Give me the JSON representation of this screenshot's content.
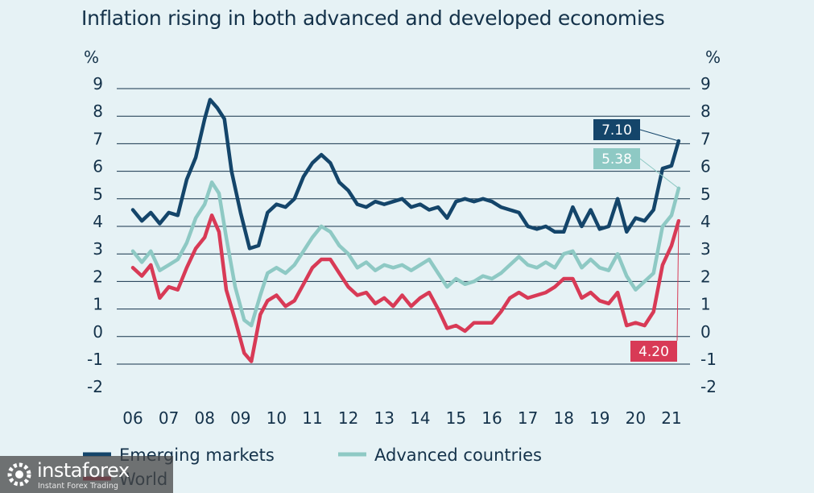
{
  "title": "Inflation rising in both advanced and developed economies",
  "watermark": {
    "name": "instaforex",
    "tagline": "Instant Forex Trading"
  },
  "chart_data": {
    "type": "line",
    "title": "Inflation rising in both advanced and developed economies",
    "y_unit_left": "%",
    "y_unit_right": "%",
    "ylim": [
      -2,
      9
    ],
    "y_ticks": [
      9,
      8,
      7,
      6,
      5,
      4,
      3,
      2,
      1,
      0,
      -1,
      -2
    ],
    "y_tick_labels": [
      "9",
      "8",
      "7",
      "6",
      "5",
      "4",
      "3",
      "2",
      "1",
      "0",
      "-1",
      "-2"
    ],
    "x_tick_labels": [
      "06",
      "07",
      "08",
      "09",
      "10",
      "11",
      "12",
      "13",
      "14",
      "15",
      "16",
      "17",
      "18",
      "19",
      "20",
      "21"
    ],
    "grid": "horizontal",
    "legend_position": "bottom",
    "series": [
      {
        "name": "Emerging markets",
        "color": "#14456a",
        "end_label": "7.10",
        "points": [
          [
            2006.0,
            4.6
          ],
          [
            2006.25,
            4.2
          ],
          [
            2006.5,
            4.5
          ],
          [
            2006.75,
            4.1
          ],
          [
            2007.0,
            4.5
          ],
          [
            2007.25,
            4.4
          ],
          [
            2007.5,
            5.7
          ],
          [
            2007.75,
            6.5
          ],
          [
            2008.0,
            7.9
          ],
          [
            2008.15,
            8.6
          ],
          [
            2008.35,
            8.3
          ],
          [
            2008.55,
            7.9
          ],
          [
            2008.75,
            6.0
          ],
          [
            2009.0,
            4.5
          ],
          [
            2009.25,
            3.2
          ],
          [
            2009.5,
            3.3
          ],
          [
            2009.75,
            4.5
          ],
          [
            2010.0,
            4.8
          ],
          [
            2010.25,
            4.7
          ],
          [
            2010.5,
            5.0
          ],
          [
            2010.75,
            5.8
          ],
          [
            2011.0,
            6.3
          ],
          [
            2011.25,
            6.6
          ],
          [
            2011.5,
            6.3
          ],
          [
            2011.75,
            5.6
          ],
          [
            2012.0,
            5.3
          ],
          [
            2012.25,
            4.8
          ],
          [
            2012.5,
            4.7
          ],
          [
            2012.75,
            4.9
          ],
          [
            2013.0,
            4.8
          ],
          [
            2013.25,
            4.9
          ],
          [
            2013.5,
            5.0
          ],
          [
            2013.75,
            4.7
          ],
          [
            2014.0,
            4.8
          ],
          [
            2014.25,
            4.6
          ],
          [
            2014.5,
            4.7
          ],
          [
            2014.75,
            4.3
          ],
          [
            2015.0,
            4.9
          ],
          [
            2015.25,
            5.0
          ],
          [
            2015.5,
            4.9
          ],
          [
            2015.75,
            5.0
          ],
          [
            2016.0,
            4.9
          ],
          [
            2016.25,
            4.7
          ],
          [
            2016.5,
            4.6
          ],
          [
            2016.75,
            4.5
          ],
          [
            2017.0,
            4.0
          ],
          [
            2017.25,
            3.9
          ],
          [
            2017.5,
            4.0
          ],
          [
            2017.75,
            3.8
          ],
          [
            2018.0,
            3.8
          ],
          [
            2018.25,
            4.7
          ],
          [
            2018.5,
            4.0
          ],
          [
            2018.75,
            4.6
          ],
          [
            2019.0,
            3.9
          ],
          [
            2019.25,
            4.0
          ],
          [
            2019.5,
            5.0
          ],
          [
            2019.75,
            3.8
          ],
          [
            2020.0,
            4.3
          ],
          [
            2020.25,
            4.2
          ],
          [
            2020.5,
            4.6
          ],
          [
            2020.75,
            6.1
          ],
          [
            2021.0,
            6.2
          ],
          [
            2021.2,
            7.1
          ]
        ]
      },
      {
        "name": "Advanced countries",
        "color": "#8ec9c4",
        "end_label": "5.38",
        "points": [
          [
            2006.0,
            3.1
          ],
          [
            2006.25,
            2.7
          ],
          [
            2006.5,
            3.1
          ],
          [
            2006.75,
            2.4
          ],
          [
            2007.0,
            2.6
          ],
          [
            2007.25,
            2.8
          ],
          [
            2007.5,
            3.4
          ],
          [
            2007.75,
            4.3
          ],
          [
            2008.0,
            4.8
          ],
          [
            2008.2,
            5.6
          ],
          [
            2008.4,
            5.2
          ],
          [
            2008.6,
            3.6
          ],
          [
            2008.85,
            1.8
          ],
          [
            2009.1,
            0.6
          ],
          [
            2009.3,
            0.4
          ],
          [
            2009.55,
            1.5
          ],
          [
            2009.75,
            2.3
          ],
          [
            2010.0,
            2.5
          ],
          [
            2010.25,
            2.3
          ],
          [
            2010.5,
            2.6
          ],
          [
            2010.75,
            3.1
          ],
          [
            2011.0,
            3.6
          ],
          [
            2011.25,
            4.0
          ],
          [
            2011.5,
            3.8
          ],
          [
            2011.75,
            3.3
          ],
          [
            2012.0,
            3.0
          ],
          [
            2012.25,
            2.5
          ],
          [
            2012.5,
            2.7
          ],
          [
            2012.75,
            2.4
          ],
          [
            2013.0,
            2.6
          ],
          [
            2013.25,
            2.5
          ],
          [
            2013.5,
            2.6
          ],
          [
            2013.75,
            2.4
          ],
          [
            2014.0,
            2.6
          ],
          [
            2014.25,
            2.8
          ],
          [
            2014.5,
            2.3
          ],
          [
            2014.75,
            1.8
          ],
          [
            2015.0,
            2.1
          ],
          [
            2015.25,
            1.9
          ],
          [
            2015.5,
            2.0
          ],
          [
            2015.75,
            2.2
          ],
          [
            2016.0,
            2.1
          ],
          [
            2016.25,
            2.3
          ],
          [
            2016.5,
            2.6
          ],
          [
            2016.75,
            2.9
          ],
          [
            2017.0,
            2.6
          ],
          [
            2017.25,
            2.5
          ],
          [
            2017.5,
            2.7
          ],
          [
            2017.75,
            2.5
          ],
          [
            2018.0,
            3.0
          ],
          [
            2018.25,
            3.1
          ],
          [
            2018.5,
            2.5
          ],
          [
            2018.75,
            2.8
          ],
          [
            2019.0,
            2.5
          ],
          [
            2019.25,
            2.4
          ],
          [
            2019.5,
            3.0
          ],
          [
            2019.75,
            2.2
          ],
          [
            2020.0,
            1.7
          ],
          [
            2020.25,
            2.0
          ],
          [
            2020.5,
            2.3
          ],
          [
            2020.75,
            4.0
          ],
          [
            2021.0,
            4.4
          ],
          [
            2021.2,
            5.38
          ]
        ]
      },
      {
        "name": "World",
        "color": "#d83a56",
        "end_label": "4.20",
        "points": [
          [
            2006.0,
            2.5
          ],
          [
            2006.25,
            2.2
          ],
          [
            2006.5,
            2.6
          ],
          [
            2006.75,
            1.4
          ],
          [
            2007.0,
            1.8
          ],
          [
            2007.25,
            1.7
          ],
          [
            2007.5,
            2.5
          ],
          [
            2007.75,
            3.2
          ],
          [
            2008.0,
            3.6
          ],
          [
            2008.2,
            4.4
          ],
          [
            2008.4,
            3.8
          ],
          [
            2008.6,
            1.7
          ],
          [
            2008.85,
            0.6
          ],
          [
            2009.1,
            -0.6
          ],
          [
            2009.3,
            -0.9
          ],
          [
            2009.55,
            0.8
          ],
          [
            2009.75,
            1.3
          ],
          [
            2010.0,
            1.5
          ],
          [
            2010.25,
            1.1
          ],
          [
            2010.5,
            1.3
          ],
          [
            2010.75,
            1.9
          ],
          [
            2011.0,
            2.5
          ],
          [
            2011.25,
            2.8
          ],
          [
            2011.5,
            2.8
          ],
          [
            2011.75,
            2.3
          ],
          [
            2012.0,
            1.8
          ],
          [
            2012.25,
            1.5
          ],
          [
            2012.5,
            1.6
          ],
          [
            2012.75,
            1.2
          ],
          [
            2013.0,
            1.4
          ],
          [
            2013.25,
            1.1
          ],
          [
            2013.5,
            1.5
          ],
          [
            2013.75,
            1.1
          ],
          [
            2014.0,
            1.4
          ],
          [
            2014.25,
            1.6
          ],
          [
            2014.5,
            1.0
          ],
          [
            2014.75,
            0.3
          ],
          [
            2015.0,
            0.4
          ],
          [
            2015.25,
            0.2
          ],
          [
            2015.5,
            0.5
          ],
          [
            2015.75,
            0.5
          ],
          [
            2016.0,
            0.5
          ],
          [
            2016.25,
            0.9
          ],
          [
            2016.5,
            1.4
          ],
          [
            2016.75,
            1.6
          ],
          [
            2017.0,
            1.4
          ],
          [
            2017.25,
            1.5
          ],
          [
            2017.5,
            1.6
          ],
          [
            2017.75,
            1.8
          ],
          [
            2018.0,
            2.1
          ],
          [
            2018.25,
            2.1
          ],
          [
            2018.5,
            1.4
          ],
          [
            2018.75,
            1.6
          ],
          [
            2019.0,
            1.3
          ],
          [
            2019.25,
            1.2
          ],
          [
            2019.5,
            1.6
          ],
          [
            2019.75,
            0.4
          ],
          [
            2020.0,
            0.5
          ],
          [
            2020.25,
            0.4
          ],
          [
            2020.5,
            0.9
          ],
          [
            2020.75,
            2.6
          ],
          [
            2021.0,
            3.3
          ],
          [
            2021.2,
            4.2
          ]
        ]
      }
    ]
  }
}
